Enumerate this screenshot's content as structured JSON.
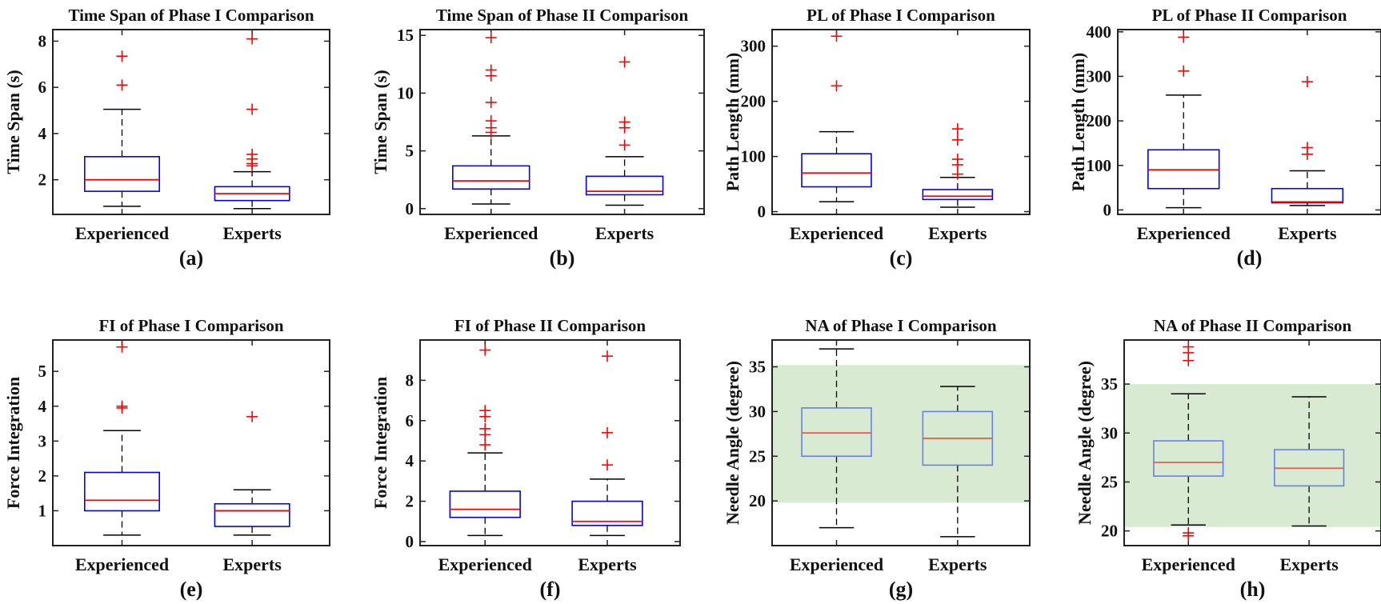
{
  "colors": {
    "box": "#0000ff",
    "median": "#ff0000",
    "outlier": "#ff0000",
    "whisker": "#000000",
    "light_box": "#6a7fe6",
    "light_median": "#e8604a",
    "band": "#d9ead3"
  },
  "chart_data": [
    {
      "type": "box",
      "title": "Time Span of Phase I Comparison",
      "panel_label": "(a)",
      "ylabel": "Time Span (s)",
      "categories": [
        "Experienced",
        "Experts"
      ],
      "ylim": [
        0.5,
        8.5
      ],
      "yticks": [
        2,
        4,
        6,
        8
      ],
      "grid": false,
      "boxes": [
        {
          "whisker_low": 0.85,
          "q1": 1.5,
          "median": 2.0,
          "q3": 3.0,
          "whisker_high": 5.05,
          "outliers": [
            6.1,
            7.35
          ]
        },
        {
          "whisker_low": 0.75,
          "q1": 1.1,
          "median": 1.4,
          "q3": 1.7,
          "whisker_high": 2.35,
          "outliers": [
            2.6,
            2.7,
            2.9,
            3.1,
            5.05,
            8.1
          ]
        }
      ]
    },
    {
      "type": "box",
      "title": "Time Span of Phase II Comparison",
      "panel_label": "(b)",
      "ylabel": "Time Span (s)",
      "categories": [
        "Experienced",
        "Experts"
      ],
      "ylim": [
        -0.5,
        15.5
      ],
      "yticks": [
        0,
        5,
        10,
        15
      ],
      "grid": false,
      "boxes": [
        {
          "whisker_low": 0.4,
          "q1": 1.7,
          "median": 2.4,
          "q3": 3.7,
          "whisker_high": 6.3,
          "outliers": [
            6.6,
            7.0,
            7.6,
            9.2,
            11.5,
            12.0,
            14.8
          ]
        },
        {
          "whisker_low": 0.3,
          "q1": 1.2,
          "median": 1.5,
          "q3": 2.8,
          "whisker_high": 4.5,
          "outliers": [
            5.5,
            7.0,
            7.5,
            12.7
          ]
        }
      ]
    },
    {
      "type": "box",
      "title": "PL of Phase I Comparison",
      "panel_label": "(c)",
      "ylabel": "Path Length (mm)",
      "categories": [
        "Experienced",
        "Experts"
      ],
      "ylim": [
        -5,
        330
      ],
      "yticks": [
        0,
        100,
        200,
        300
      ],
      "grid": false,
      "boxes": [
        {
          "whisker_low": 18,
          "q1": 45,
          "median": 70,
          "q3": 105,
          "whisker_high": 145,
          "outliers": [
            228,
            318
          ]
        },
        {
          "whisker_low": 8,
          "q1": 22,
          "median": 28,
          "q3": 40,
          "whisker_high": 62,
          "outliers": [
            68,
            85,
            95,
            130,
            150
          ]
        }
      ]
    },
    {
      "type": "box",
      "title": "PL of Phase II Comparison",
      "panel_label": "(d)",
      "ylabel": "Path Length (mm)",
      "categories": [
        "Experienced",
        "Experts"
      ],
      "ylim": [
        -10,
        405
      ],
      "yticks": [
        0,
        100,
        200,
        300,
        400
      ],
      "grid": false,
      "boxes": [
        {
          "whisker_low": 5,
          "q1": 48,
          "median": 90,
          "q3": 135,
          "whisker_high": 258,
          "outliers": [
            312,
            388
          ]
        },
        {
          "whisker_low": 10,
          "q1": 16,
          "median": 18,
          "q3": 48,
          "whisker_high": 88,
          "outliers": [
            125,
            140,
            288
          ]
        }
      ]
    },
    {
      "type": "box",
      "title": "FI of Phase I Comparison",
      "panel_label": "(e)",
      "ylabel": "Force Integration",
      "categories": [
        "Experienced",
        "Experts"
      ],
      "ylim": [
        0,
        5.9
      ],
      "yticks": [
        1,
        2,
        3,
        4,
        5
      ],
      "grid": false,
      "boxes": [
        {
          "whisker_low": 0.3,
          "q1": 1.0,
          "median": 1.3,
          "q3": 2.1,
          "whisker_high": 3.3,
          "outliers": [
            3.95,
            4.0,
            5.7
          ]
        },
        {
          "whisker_low": 0.3,
          "q1": 0.55,
          "median": 1.0,
          "q3": 1.2,
          "whisker_high": 1.6,
          "outliers": [
            3.7
          ]
        }
      ]
    },
    {
      "type": "box",
      "title": "FI of Phase II Comparison",
      "panel_label": "(f)",
      "ylabel": "Force Integration",
      "categories": [
        "Experienced",
        "Experts"
      ],
      "ylim": [
        -0.2,
        10
      ],
      "yticks": [
        0,
        2,
        4,
        6,
        8
      ],
      "grid": false,
      "boxes": [
        {
          "whisker_low": 0.3,
          "q1": 1.2,
          "median": 1.6,
          "q3": 2.5,
          "whisker_high": 4.4,
          "outliers": [
            4.8,
            5.3,
            5.6,
            6.2,
            6.5,
            9.5
          ]
        },
        {
          "whisker_low": 0.3,
          "q1": 0.8,
          "median": 1.0,
          "q3": 2.0,
          "whisker_high": 3.1,
          "outliers": [
            3.8,
            5.4,
            9.2
          ]
        }
      ]
    },
    {
      "type": "box",
      "title": "NA of Phase I Comparison",
      "panel_label": "(g)",
      "ylabel": "Needle Angle (degree)",
      "categories": [
        "Experienced",
        "Experts"
      ],
      "ylim": [
        15,
        38
      ],
      "yticks": [
        20,
        25,
        30,
        35
      ],
      "grid": false,
      "band": [
        19.8,
        35.2
      ],
      "light_style": true,
      "boxes": [
        {
          "whisker_low": 17,
          "q1": 25,
          "median": 27.6,
          "q3": 30.4,
          "whisker_high": 37,
          "outliers": []
        },
        {
          "whisker_low": 16,
          "q1": 24,
          "median": 27,
          "q3": 30,
          "whisker_high": 32.8,
          "outliers": []
        }
      ]
    },
    {
      "type": "box",
      "title": "NA of Phase II Comparison",
      "panel_label": "(h)",
      "ylabel": "Needle Angle (degree)",
      "categories": [
        "Experienced",
        "Experts"
      ],
      "ylim": [
        18.5,
        39.5
      ],
      "yticks": [
        20,
        25,
        30,
        35
      ],
      "grid": false,
      "band": [
        20.4,
        35.0
      ],
      "light_style": true,
      "boxes": [
        {
          "whisker_low": 20.6,
          "q1": 25.6,
          "median": 27.0,
          "q3": 29.2,
          "whisker_high": 34.0,
          "outliers": [
            19.5,
            19.8,
            37.4,
            38.2,
            38.8
          ]
        },
        {
          "whisker_low": 20.5,
          "q1": 24.6,
          "median": 26.4,
          "q3": 28.3,
          "whisker_high": 33.7,
          "outliers": []
        }
      ]
    }
  ]
}
